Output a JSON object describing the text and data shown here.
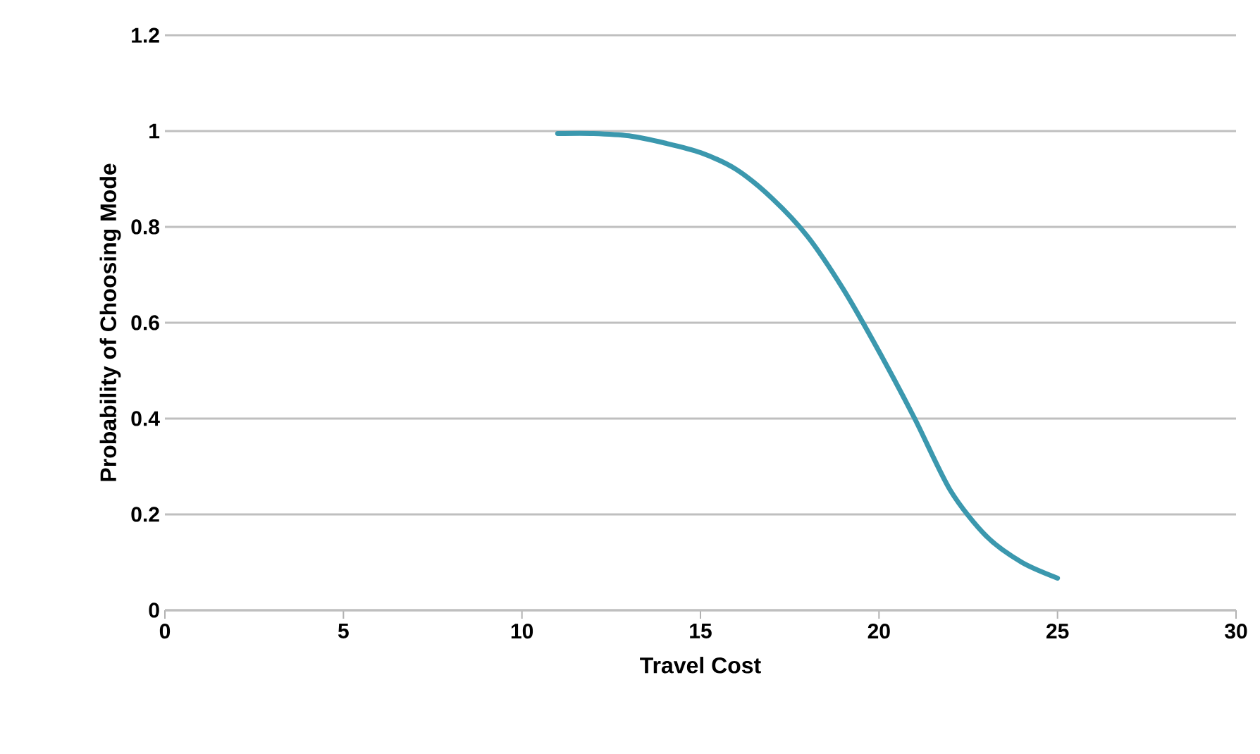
{
  "chart_data": {
    "type": "line",
    "xlabel": "Travel Cost",
    "ylabel": "Probability of Choosing Mode",
    "x": [
      11,
      12,
      13,
      14,
      15,
      16,
      17,
      18,
      19,
      20,
      21,
      22,
      23,
      24,
      25
    ],
    "series": [
      {
        "color": "#3b98ae",
        "values": [
          0.995,
          0.995,
          0.99,
          0.975,
          0.955,
          0.92,
          0.86,
          0.78,
          0.67,
          0.54,
          0.4,
          0.25,
          0.155,
          0.1,
          0.067
        ]
      }
    ],
    "xlim": [
      0,
      30
    ],
    "xticks": [
      0,
      5,
      10,
      15,
      20,
      25,
      30
    ],
    "ylim": [
      0,
      1.2
    ],
    "yticks": [
      0,
      0.2,
      0.4,
      0.6,
      0.8,
      1,
      1.2
    ],
    "grid": "y",
    "marker": "none",
    "line_style": "solid"
  }
}
